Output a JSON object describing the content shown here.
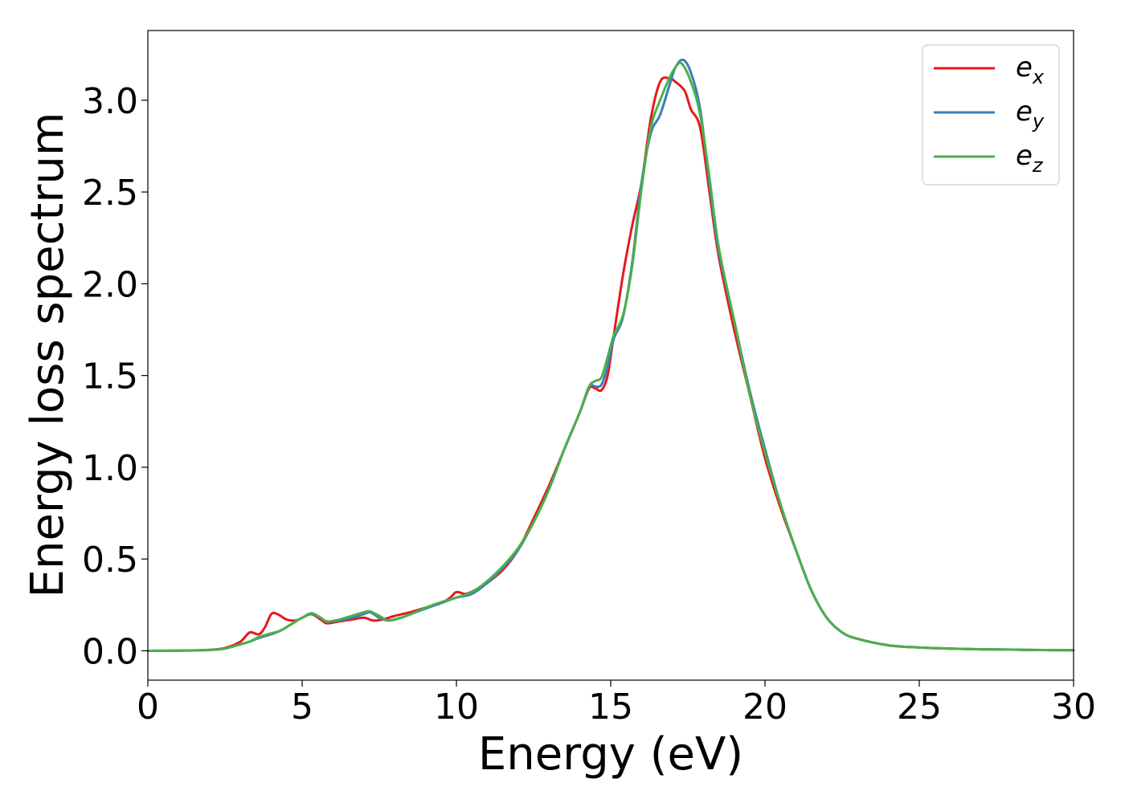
{
  "chart_data": {
    "type": "line",
    "title": "",
    "xlabel": "Energy (eV)",
    "ylabel": "Energy loss spectrum",
    "xlim": [
      0,
      30
    ],
    "ylim": [
      -0.16,
      3.38
    ],
    "xticks": [
      0,
      5,
      10,
      15,
      20,
      25,
      30
    ],
    "yticks": [
      0.0,
      0.5,
      1.0,
      1.5,
      2.0,
      2.5,
      3.0
    ],
    "xtick_labels": [
      "0",
      "5",
      "10",
      "15",
      "20",
      "25",
      "30"
    ],
    "ytick_labels": [
      "0.0",
      "0.5",
      "1.0",
      "1.5",
      "2.0",
      "2.5",
      "3.0"
    ],
    "grid": false,
    "legend_position": "top-right",
    "series": [
      {
        "name": "e_x",
        "label_base": "e",
        "label_sub": "x",
        "color": "#e41a1c",
        "x": [
          0,
          1,
          2,
          2.5,
          3,
          3.3,
          3.6,
          3.8,
          4.0,
          4.2,
          4.5,
          4.8,
          5.0,
          5.3,
          5.6,
          5.8,
          6.2,
          6.6,
          7.0,
          7.3,
          7.6,
          8.0,
          8.5,
          9.0,
          9.5,
          9.8,
          10.0,
          10.3,
          10.6,
          11.0,
          11.5,
          12.0,
          12.5,
          13.0,
          13.5,
          14.0,
          14.3,
          14.5,
          14.7,
          14.9,
          15.1,
          15.4,
          15.7,
          16.0,
          16.3,
          16.6,
          16.9,
          17.1,
          17.4,
          17.6,
          17.9,
          18.2,
          18.5,
          19.0,
          19.5,
          20.0,
          20.5,
          21.0,
          21.5,
          22.0,
          22.5,
          23.0,
          24.0,
          25.0,
          26.0,
          27.0,
          28.0,
          29.0,
          30.0
        ],
        "y": [
          0.0,
          0.001,
          0.005,
          0.015,
          0.05,
          0.1,
          0.09,
          0.13,
          0.2,
          0.2,
          0.17,
          0.165,
          0.18,
          0.2,
          0.17,
          0.15,
          0.16,
          0.17,
          0.18,
          0.165,
          0.17,
          0.19,
          0.21,
          0.235,
          0.26,
          0.29,
          0.32,
          0.31,
          0.33,
          0.37,
          0.44,
          0.55,
          0.72,
          0.9,
          1.1,
          1.3,
          1.43,
          1.43,
          1.42,
          1.5,
          1.72,
          2.05,
          2.32,
          2.55,
          2.9,
          3.1,
          3.12,
          3.1,
          3.05,
          2.95,
          2.85,
          2.5,
          2.15,
          1.75,
          1.4,
          1.05,
          0.78,
          0.55,
          0.33,
          0.18,
          0.1,
          0.065,
          0.03,
          0.018,
          0.012,
          0.008,
          0.006,
          0.004,
          0.003
        ]
      },
      {
        "name": "e_y",
        "label_base": "e",
        "label_sub": "y",
        "color": "#377eb8",
        "x": [
          0,
          1,
          2,
          2.5,
          3,
          3.3,
          3.6,
          4.0,
          4.3,
          4.6,
          5.0,
          5.3,
          5.6,
          5.8,
          6.2,
          6.6,
          7.0,
          7.2,
          7.5,
          7.8,
          8.2,
          8.6,
          9.0,
          9.5,
          10.0,
          10.5,
          11.0,
          11.5,
          12.0,
          12.5,
          13.0,
          13.5,
          14.0,
          14.3,
          14.5,
          14.7,
          14.9,
          15.1,
          15.4,
          15.7,
          16.0,
          16.3,
          16.6,
          16.9,
          17.1,
          17.35,
          17.6,
          17.9,
          18.2,
          18.5,
          19.0,
          19.5,
          20.0,
          20.5,
          21.0,
          21.5,
          22.0,
          22.5,
          23.0,
          24.0,
          25.0,
          26.0,
          27.0,
          28.0,
          29.0,
          30.0
        ],
        "y": [
          0.0,
          0.001,
          0.004,
          0.012,
          0.035,
          0.05,
          0.07,
          0.09,
          0.11,
          0.14,
          0.18,
          0.2,
          0.18,
          0.16,
          0.165,
          0.18,
          0.2,
          0.21,
          0.18,
          0.165,
          0.18,
          0.205,
          0.23,
          0.26,
          0.29,
          0.31,
          0.37,
          0.45,
          0.55,
          0.7,
          0.88,
          1.1,
          1.3,
          1.44,
          1.44,
          1.45,
          1.55,
          1.7,
          1.82,
          2.12,
          2.55,
          2.82,
          2.92,
          3.08,
          3.18,
          3.22,
          3.15,
          2.95,
          2.55,
          2.18,
          1.8,
          1.42,
          1.1,
          0.8,
          0.55,
          0.33,
          0.18,
          0.1,
          0.065,
          0.03,
          0.018,
          0.012,
          0.008,
          0.006,
          0.004,
          0.003
        ]
      },
      {
        "name": "e_z",
        "label_base": "e",
        "label_sub": "z",
        "color": "#4daf4a",
        "x": [
          0,
          1,
          2,
          2.5,
          3,
          3.3,
          3.6,
          4.0,
          4.3,
          4.6,
          5.0,
          5.3,
          5.6,
          5.8,
          6.2,
          6.6,
          7.0,
          7.2,
          7.5,
          7.8,
          8.2,
          8.6,
          9.0,
          9.5,
          10.0,
          10.5,
          11.0,
          11.5,
          12.0,
          12.5,
          13.0,
          13.5,
          14.0,
          14.3,
          14.5,
          14.7,
          14.9,
          15.1,
          15.4,
          15.7,
          16.0,
          16.3,
          16.6,
          16.9,
          17.1,
          17.3,
          17.6,
          17.9,
          18.2,
          18.5,
          19.0,
          19.5,
          20.0,
          20.5,
          21.0,
          21.5,
          22.0,
          22.5,
          23.0,
          24.0,
          25.0,
          26.0,
          27.0,
          28.0,
          29.0,
          30.0
        ],
        "y": [
          0.0,
          0.001,
          0.004,
          0.012,
          0.035,
          0.05,
          0.075,
          0.095,
          0.11,
          0.14,
          0.18,
          0.205,
          0.18,
          0.16,
          0.17,
          0.19,
          0.21,
          0.215,
          0.19,
          0.165,
          0.18,
          0.205,
          0.235,
          0.265,
          0.29,
          0.32,
          0.38,
          0.46,
          0.56,
          0.7,
          0.88,
          1.1,
          1.3,
          1.44,
          1.47,
          1.49,
          1.6,
          1.72,
          1.83,
          2.1,
          2.52,
          2.85,
          3.0,
          3.12,
          3.18,
          3.2,
          3.1,
          2.92,
          2.58,
          2.2,
          1.8,
          1.4,
          1.08,
          0.8,
          0.55,
          0.33,
          0.18,
          0.1,
          0.065,
          0.03,
          0.018,
          0.012,
          0.008,
          0.006,
          0.004,
          0.003
        ]
      }
    ]
  }
}
